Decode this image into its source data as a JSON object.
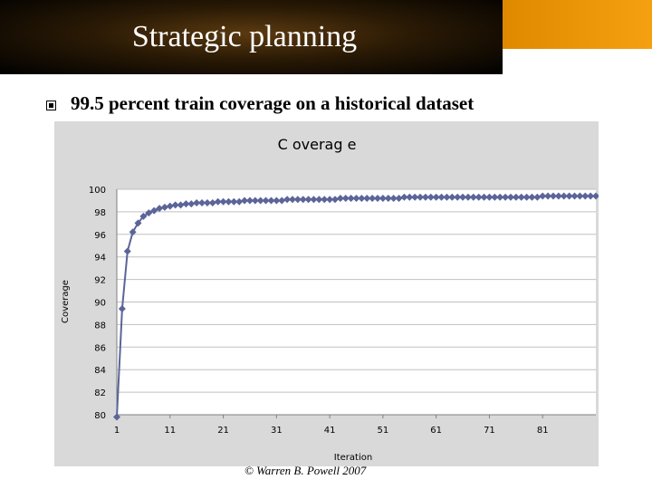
{
  "slide": {
    "title": "Strategic planning",
    "bullet": "99.5 percent train coverage on a historical dataset",
    "copyright": "© Warren B. Powell 2007"
  },
  "colors": {
    "series": "#5b6598",
    "plot_bg": "#ffffff",
    "frame_bg": "#d9d9d9",
    "grid": "#c0c0c0"
  },
  "chart_data": {
    "type": "line",
    "title": "C overag e",
    "xlabel": "Iteration",
    "ylabel": "Coverage",
    "ylim": [
      80,
      100
    ],
    "yticks": [
      80,
      82,
      84,
      86,
      88,
      90,
      92,
      94,
      96,
      98,
      100
    ],
    "xticks": [
      1,
      11,
      21,
      31,
      41,
      51,
      61,
      71,
      81
    ],
    "grid": true,
    "markers": "diamond",
    "series": [
      {
        "values": [
          79.8,
          89.4,
          94.5,
          96.2,
          97.0,
          97.6,
          97.9,
          98.1,
          98.3,
          98.4,
          98.5,
          98.6,
          98.6,
          98.7,
          98.7,
          98.8,
          98.8,
          98.8,
          98.8,
          98.9,
          98.9,
          98.9,
          98.9,
          98.9,
          99.0,
          99.0,
          99.0,
          99.0,
          99.0,
          99.0,
          99.0,
          99.0,
          99.1,
          99.1,
          99.1,
          99.1,
          99.1,
          99.1,
          99.1,
          99.1,
          99.1,
          99.1,
          99.2,
          99.2,
          99.2,
          99.2,
          99.2,
          99.2,
          99.2,
          99.2,
          99.2,
          99.2,
          99.2,
          99.2,
          99.3,
          99.3,
          99.3,
          99.3,
          99.3,
          99.3,
          99.3,
          99.3,
          99.3,
          99.3,
          99.3,
          99.3,
          99.3,
          99.3,
          99.3,
          99.3,
          99.3,
          99.3,
          99.3,
          99.3,
          99.3,
          99.3,
          99.3,
          99.3,
          99.3,
          99.3,
          99.4,
          99.4,
          99.4,
          99.4,
          99.4,
          99.4,
          99.4,
          99.4,
          99.4,
          99.4,
          99.4
        ]
      }
    ]
  }
}
